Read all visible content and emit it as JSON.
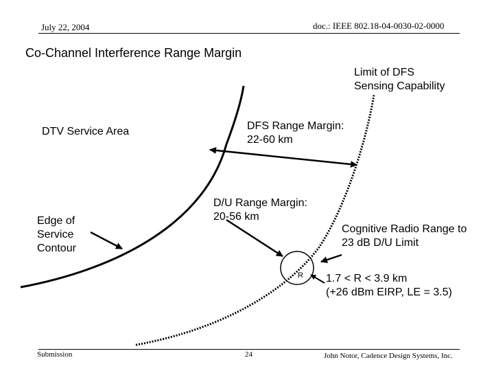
{
  "header": {
    "date": "July 22, 2004",
    "doc_id": "doc.: IEEE 802.18-04-0030-02-0000"
  },
  "title": "Co-Channel Interference Range Margin",
  "labels": {
    "dfs_limit": [
      "Limit of DFS",
      "Sensing Capability"
    ],
    "dtv_area": "DTV Service Area",
    "dfs_margin": [
      "DFS Range Margin:",
      "22-60 km"
    ],
    "du_margin": [
      "D/U Range Margin:",
      "20-56 km"
    ],
    "edge_contour": [
      "Edge of",
      "Service",
      "Contour"
    ],
    "cr_range": [
      "Cognitive Radio Range to",
      "23 dB D/U Limit"
    ],
    "r_symbol": "R",
    "r_range": [
      "1.7 < R < 3.9 km",
      "(+26 dBm EIRP, LE = 3.5)"
    ]
  },
  "footer": {
    "left": "Submission",
    "page": "24",
    "right": "John Notor, Cadence Design Systems, Inc."
  }
}
